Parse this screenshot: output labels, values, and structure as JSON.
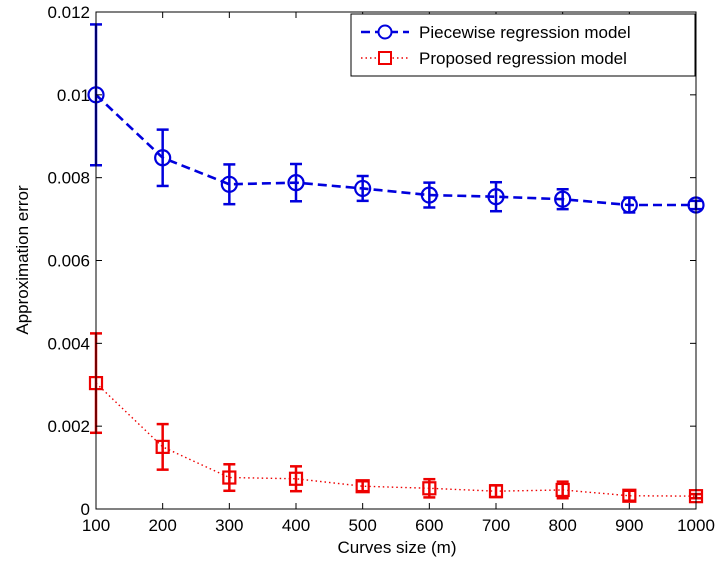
{
  "chart_data": {
    "type": "line",
    "title": "",
    "xlabel": "Curves size (m)",
    "ylabel": "Approximation error",
    "xlim": [
      100,
      1000
    ],
    "ylim": [
      0,
      0.012
    ],
    "xticks": [
      100,
      200,
      300,
      400,
      500,
      600,
      700,
      800,
      900,
      1000
    ],
    "yticks": [
      0,
      0.002,
      0.004,
      0.006,
      0.008,
      0.01,
      0.012
    ],
    "ytick_labels": [
      "0",
      "0.002",
      "0.004",
      "0.006",
      "0.008",
      "0.01",
      "0.012"
    ],
    "grid": false,
    "legend_position": "top-right",
    "x": [
      100,
      200,
      300,
      400,
      500,
      600,
      700,
      800,
      900,
      1000
    ],
    "series": [
      {
        "name": "Piecewise regression model",
        "color": "#0000dd",
        "line_style": "dashed",
        "marker": "circle",
        "values": [
          0.01,
          0.00848,
          0.00784,
          0.00788,
          0.00774,
          0.00758,
          0.00754,
          0.00748,
          0.00734,
          0.00734
        ],
        "error": [
          0.0017,
          0.00068,
          0.00048,
          0.00045,
          0.0003,
          0.0003,
          0.00035,
          0.00024,
          0.00018,
          0.0001
        ]
      },
      {
        "name": "Proposed regression model",
        "color": "#ee0000",
        "line_style": "dotted",
        "marker": "square",
        "values": [
          0.00304,
          0.0015,
          0.00076,
          0.00073,
          0.00055,
          0.0005,
          0.00043,
          0.00046,
          0.00032,
          0.00031
        ],
        "error": [
          0.0012,
          0.00055,
          0.00032,
          0.0003,
          0.00012,
          0.00022,
          0.00014,
          0.0002,
          0.00012,
          5e-05
        ]
      }
    ]
  }
}
